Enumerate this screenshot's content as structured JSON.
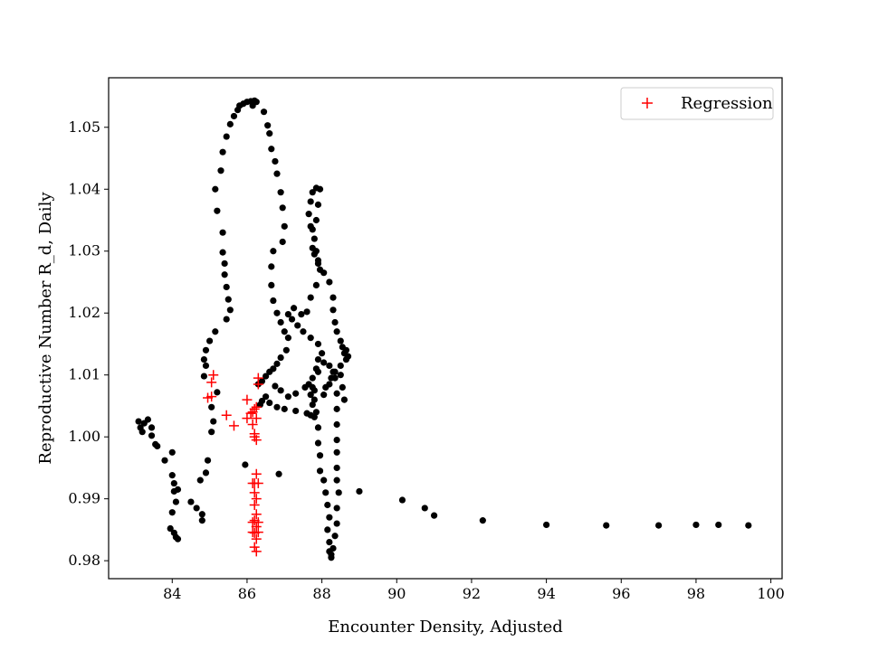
{
  "chart_data": {
    "type": "scatter",
    "title": "",
    "xlabel": "Encounter Density, Adjusted",
    "ylabel": "Reproductive Number R_d, Daily",
    "xlim": [
      82.3,
      100.3
    ],
    "ylim": [
      0.9771,
      1.058
    ],
    "xticks": [
      84,
      86,
      88,
      90,
      92,
      94,
      96,
      98,
      100
    ],
    "yticks": [
      0.98,
      0.99,
      1.0,
      1.01,
      1.02,
      1.03,
      1.04,
      1.05
    ],
    "ytick_labels": [
      "0.98",
      "0.99",
      "1.00",
      "1.01",
      "1.02",
      "1.03",
      "1.04",
      "1.05"
    ],
    "grid": false,
    "legend": {
      "position": "top-right",
      "entries": [
        "Regression"
      ]
    },
    "series": [
      {
        "marker": "dot",
        "color": "#000000",
        "points": [
          [
            83.1,
            1.0025
          ],
          [
            83.15,
            1.0015
          ],
          [
            83.2,
            1.0008
          ],
          [
            83.25,
            1.0022
          ],
          [
            83.35,
            1.0028
          ],
          [
            83.45,
            1.0015
          ],
          [
            83.45,
            1.0002
          ],
          [
            83.55,
            0.9988
          ],
          [
            83.6,
            0.9985
          ],
          [
            83.8,
            0.9962
          ],
          [
            84.0,
            0.9975
          ],
          [
            84.0,
            0.9938
          ],
          [
            84.05,
            0.9925
          ],
          [
            84.05,
            0.9912
          ],
          [
            84.1,
            0.9895
          ],
          [
            84.15,
            0.9915
          ],
          [
            84.0,
            0.9878
          ],
          [
            83.95,
            0.9852
          ],
          [
            84.05,
            0.9845
          ],
          [
            84.1,
            0.9838
          ],
          [
            84.15,
            0.9835
          ],
          [
            84.5,
            0.9895
          ],
          [
            84.65,
            0.9885
          ],
          [
            84.8,
            0.9875
          ],
          [
            84.8,
            0.9865
          ],
          [
            84.75,
            0.993
          ],
          [
            84.9,
            0.9942
          ],
          [
            84.95,
            0.9962
          ],
          [
            85.05,
            1.0008
          ],
          [
            85.1,
            1.0025
          ],
          [
            85.05,
            1.0048
          ],
          [
            84.85,
            1.0098
          ],
          [
            84.9,
            1.0115
          ],
          [
            84.85,
            1.0125
          ],
          [
            84.9,
            1.014
          ],
          [
            85.0,
            1.0155
          ],
          [
            85.2,
            1.0072
          ],
          [
            85.15,
            1.017
          ],
          [
            85.45,
            1.019
          ],
          [
            85.55,
            1.0205
          ],
          [
            85.5,
            1.0222
          ],
          [
            85.45,
            1.0242
          ],
          [
            85.4,
            1.0262
          ],
          [
            85.4,
            1.028
          ],
          [
            85.35,
            1.0298
          ],
          [
            85.35,
            1.033
          ],
          [
            85.2,
            1.0365
          ],
          [
            85.15,
            1.04
          ],
          [
            85.3,
            1.043
          ],
          [
            85.35,
            1.046
          ],
          [
            85.45,
            1.0485
          ],
          [
            85.55,
            1.0505
          ],
          [
            85.65,
            1.0518
          ],
          [
            85.75,
            1.0528
          ],
          [
            85.8,
            1.0535
          ],
          [
            85.9,
            1.0538
          ],
          [
            86.0,
            1.0541
          ],
          [
            86.1,
            1.0542
          ],
          [
            86.2,
            1.0543
          ],
          [
            86.25,
            1.0541
          ],
          [
            86.15,
            1.0535
          ],
          [
            86.45,
            1.0525
          ],
          [
            86.55,
            1.0503
          ],
          [
            86.6,
            1.049
          ],
          [
            86.65,
            1.0465
          ],
          [
            86.75,
            1.0445
          ],
          [
            86.8,
            1.0425
          ],
          [
            86.9,
            1.0395
          ],
          [
            86.95,
            1.037
          ],
          [
            87.0,
            1.034
          ],
          [
            86.95,
            1.0315
          ],
          [
            86.7,
            1.03
          ],
          [
            86.65,
            1.0275
          ],
          [
            86.65,
            1.0245
          ],
          [
            86.7,
            1.022
          ],
          [
            86.8,
            1.02
          ],
          [
            86.9,
            1.0185
          ],
          [
            87.0,
            1.017
          ],
          [
            87.1,
            1.016
          ],
          [
            87.05,
            1.014
          ],
          [
            86.9,
            1.0128
          ],
          [
            86.8,
            1.0118
          ],
          [
            86.7,
            1.011
          ],
          [
            86.6,
            1.0105
          ],
          [
            86.5,
            1.0098
          ],
          [
            86.4,
            1.009
          ],
          [
            86.3,
            1.0085
          ],
          [
            86.6,
            1.0055
          ],
          [
            86.8,
            1.0048
          ],
          [
            87.0,
            1.0045
          ],
          [
            87.3,
            1.0042
          ],
          [
            87.6,
            1.0038
          ],
          [
            87.7,
            1.0035
          ],
          [
            87.8,
            1.0032
          ],
          [
            87.75,
            1.0052
          ],
          [
            87.7,
            1.0068
          ],
          [
            87.65,
            1.0085
          ],
          [
            87.75,
            1.0095
          ],
          [
            87.85,
            1.011
          ],
          [
            87.9,
            1.0125
          ],
          [
            88.0,
            1.0135
          ],
          [
            87.9,
            1.015
          ],
          [
            87.7,
            1.016
          ],
          [
            87.5,
            1.017
          ],
          [
            87.35,
            1.018
          ],
          [
            87.2,
            1.019
          ],
          [
            87.1,
            1.0198
          ],
          [
            87.25,
            1.0208
          ],
          [
            87.45,
            1.0198
          ],
          [
            87.6,
            1.0202
          ],
          [
            87.7,
            1.0225
          ],
          [
            87.85,
            1.0245
          ],
          [
            87.95,
            1.027
          ],
          [
            87.9,
            1.0285
          ],
          [
            87.85,
            1.03
          ],
          [
            87.8,
            1.032
          ],
          [
            87.7,
            1.034
          ],
          [
            87.65,
            1.036
          ],
          [
            87.7,
            1.038
          ],
          [
            87.75,
            1.0395
          ],
          [
            87.85,
            1.0402
          ],
          [
            87.95,
            1.04
          ],
          [
            87.9,
            1.0375
          ],
          [
            87.85,
            1.035
          ],
          [
            87.75,
            1.0335
          ],
          [
            87.75,
            1.0305
          ],
          [
            87.8,
            1.0295
          ],
          [
            87.9,
            1.028
          ],
          [
            88.05,
            1.0265
          ],
          [
            88.2,
            1.025
          ],
          [
            88.3,
            1.0225
          ],
          [
            88.3,
            1.0205
          ],
          [
            88.35,
            1.0185
          ],
          [
            88.4,
            1.017
          ],
          [
            88.5,
            1.0155
          ],
          [
            88.55,
            1.0145
          ],
          [
            88.6,
            1.0135
          ],
          [
            88.65,
            1.0125
          ],
          [
            88.5,
            1.0115
          ],
          [
            88.35,
            1.0105
          ],
          [
            88.25,
            1.0095
          ],
          [
            88.2,
            1.0085
          ],
          [
            88.1,
            1.008
          ],
          [
            88.05,
            1.0068
          ],
          [
            87.8,
            1.0075
          ],
          [
            87.55,
            1.008
          ],
          [
            87.3,
            1.007
          ],
          [
            87.1,
            1.0065
          ],
          [
            86.9,
            1.0075
          ],
          [
            86.75,
            1.0082
          ],
          [
            86.5,
            1.0065
          ],
          [
            86.4,
            1.0058
          ],
          [
            86.35,
            1.0052
          ],
          [
            88.35,
            1.0095
          ],
          [
            88.4,
            1.007
          ],
          [
            88.4,
            1.0045
          ],
          [
            88.4,
            1.002
          ],
          [
            88.4,
            0.9995
          ],
          [
            88.4,
            0.9975
          ],
          [
            88.4,
            0.995
          ],
          [
            88.4,
            0.993
          ],
          [
            88.45,
            0.991
          ],
          [
            88.4,
            0.9885
          ],
          [
            88.4,
            0.986
          ],
          [
            88.35,
            0.984
          ],
          [
            88.3,
            0.982
          ],
          [
            88.25,
            0.981
          ],
          [
            88.25,
            0.9805
          ],
          [
            88.2,
            0.9815
          ],
          [
            88.2,
            0.983
          ],
          [
            88.15,
            0.985
          ],
          [
            88.2,
            0.987
          ],
          [
            88.15,
            0.989
          ],
          [
            88.1,
            0.991
          ],
          [
            88.05,
            0.993
          ],
          [
            87.95,
            0.9945
          ],
          [
            87.95,
            0.997
          ],
          [
            87.9,
            0.999
          ],
          [
            87.9,
            1.0015
          ],
          [
            87.85,
            1.004
          ],
          [
            87.8,
            1.006
          ],
          [
            87.75,
            1.008
          ],
          [
            87.9,
            1.0105
          ],
          [
            88.05,
            1.012
          ],
          [
            88.2,
            1.0115
          ],
          [
            88.3,
            1.0105
          ],
          [
            88.5,
            1.01
          ],
          [
            88.55,
            1.008
          ],
          [
            88.6,
            1.006
          ],
          [
            88.65,
            1.014
          ],
          [
            88.7,
            1.013
          ],
          [
            85.95,
            0.9955
          ],
          [
            86.85,
            0.994
          ],
          [
            89.0,
            0.9912
          ],
          [
            90.15,
            0.9898
          ],
          [
            90.75,
            0.9885
          ],
          [
            91.0,
            0.9873
          ],
          [
            92.3,
            0.9865
          ],
          [
            94.0,
            0.9858
          ],
          [
            95.6,
            0.9857
          ],
          [
            97.0,
            0.9857
          ],
          [
            98.0,
            0.9858
          ],
          [
            98.6,
            0.9858
          ],
          [
            99.4,
            0.9857
          ]
        ]
      },
      {
        "name": "Regression",
        "marker": "plus",
        "color": "#ff0000",
        "points": [
          [
            85.1,
            1.01
          ],
          [
            85.05,
            1.0088
          ],
          [
            84.95,
            1.0063
          ],
          [
            85.05,
            1.0065
          ],
          [
            85.45,
            1.0035
          ],
          [
            85.65,
            1.0018
          ],
          [
            86.0,
            1.006
          ],
          [
            86.0,
            1.003
          ],
          [
            86.1,
            1.0038
          ],
          [
            86.15,
            1.004
          ],
          [
            86.2,
            1.0045
          ],
          [
            86.25,
            1.0048
          ],
          [
            86.25,
            1.003
          ],
          [
            86.15,
            1.002
          ],
          [
            86.2,
            1.0005
          ],
          [
            86.2,
            1.0
          ],
          [
            86.25,
            0.9995
          ],
          [
            86.3,
            1.0095
          ],
          [
            86.3,
            1.0085
          ],
          [
            86.25,
            0.994
          ],
          [
            86.2,
            0.9925
          ],
          [
            86.2,
            0.991
          ],
          [
            86.25,
            0.99
          ],
          [
            86.2,
            0.989
          ],
          [
            86.25,
            0.9875
          ],
          [
            86.2,
            0.9865
          ],
          [
            86.25,
            0.9855
          ],
          [
            86.2,
            0.9845
          ],
          [
            86.25,
            0.9835
          ],
          [
            86.2,
            0.9822
          ],
          [
            86.25,
            0.9815
          ],
          [
            86.15,
            0.9925
          ],
          [
            86.3,
            0.9925
          ],
          [
            86.15,
            0.9862
          ],
          [
            86.3,
            0.9862
          ],
          [
            86.15,
            0.9846
          ],
          [
            86.3,
            0.9846
          ]
        ]
      }
    ]
  }
}
